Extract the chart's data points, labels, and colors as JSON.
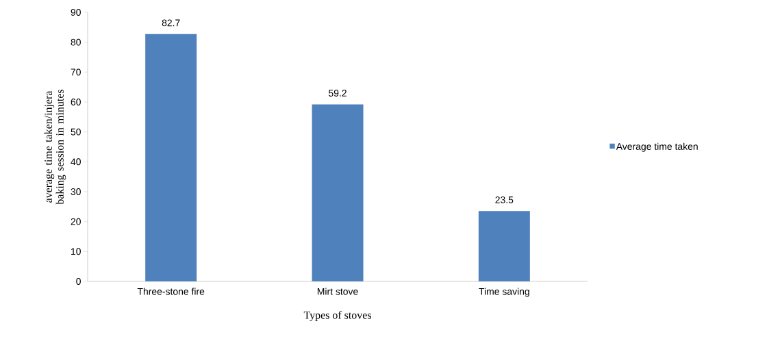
{
  "chart_data": {
    "type": "bar",
    "xlabel": "Types of stoves",
    "ylabel": "average time taken/injera baking session in minutes",
    "categories": [
      "Three-stone fire",
      "Mirt stove",
      "Time saving"
    ],
    "series": [
      {
        "name": "Average time taken",
        "color": "#4f81bd",
        "values": [
          82.7,
          59.2,
          23.5
        ]
      }
    ],
    "ylim": [
      0,
      90
    ],
    "yticks": [
      0,
      10,
      20,
      30,
      40,
      50,
      60,
      70,
      80,
      90
    ],
    "data_labels": true,
    "legend": "right",
    "grid": false
  }
}
